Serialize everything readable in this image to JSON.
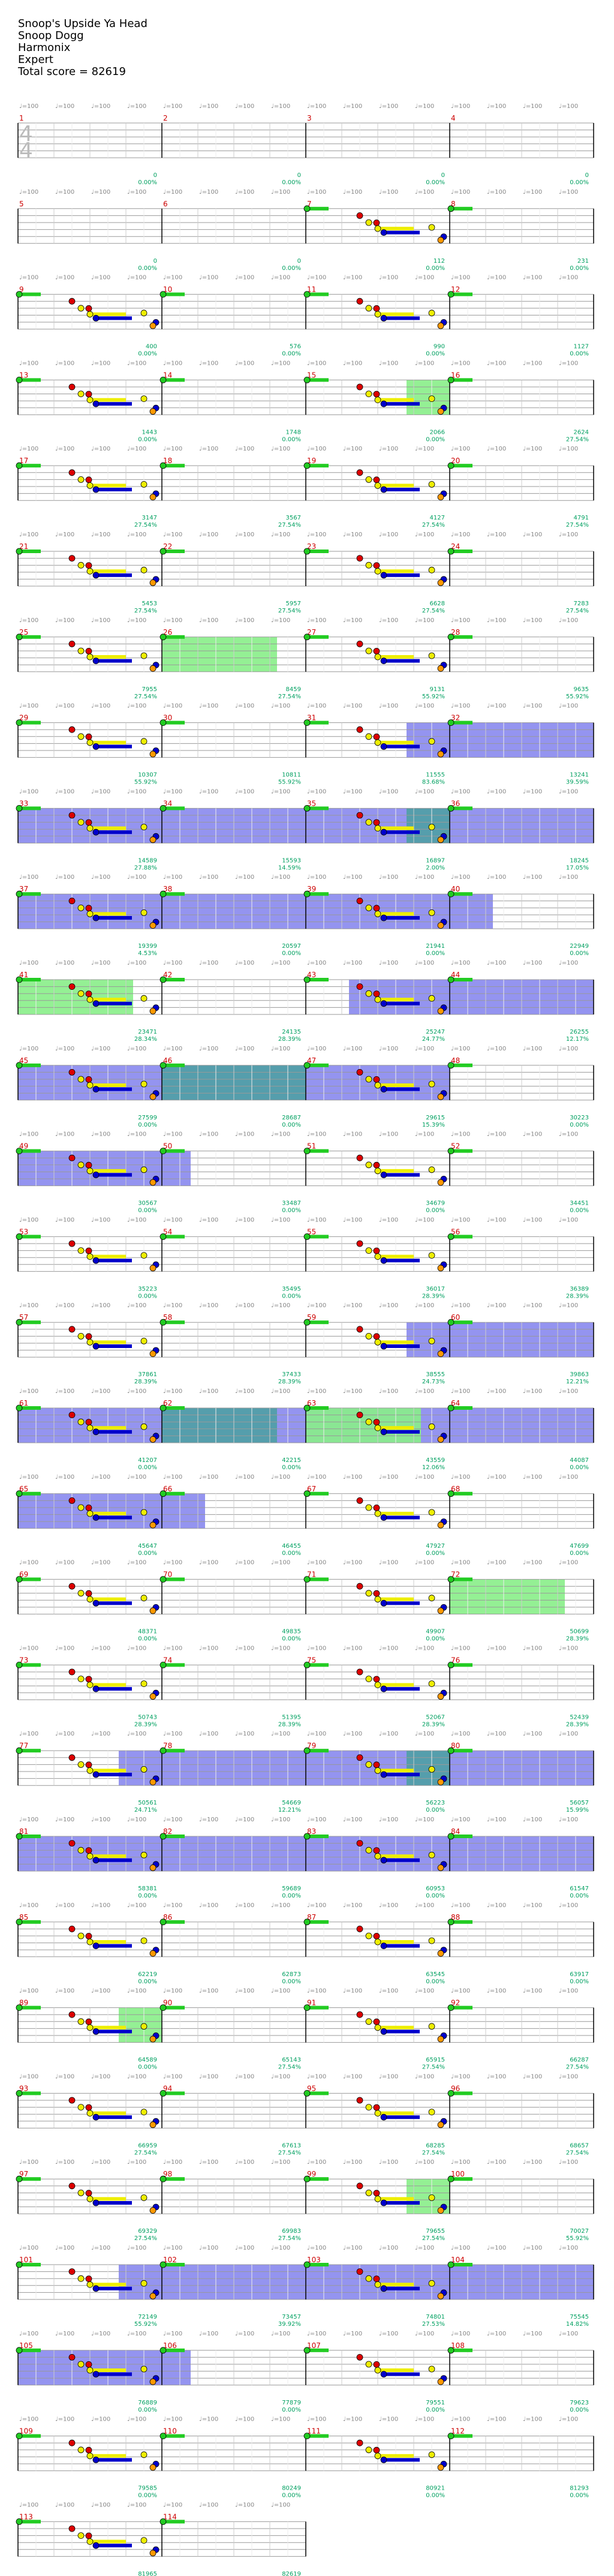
{
  "header": {
    "song": "Snoop's Upside Ya Head",
    "artist": "Snoop Dogg",
    "source": "Harmonix",
    "difficulty": "Expert",
    "total_score": "Total score = 82619"
  },
  "time_signature": {
    "top": "4",
    "bottom": "4"
  },
  "tempo_label": "♩=100",
  "colors": {
    "green": "#22cc22",
    "red": "#dd0000",
    "yellow": "#eeee00",
    "blue": "#0000cc",
    "orange": "#ff9900",
    "overdrive": "#88ee88",
    "solo": "#8888ee"
  },
  "rows": [
    {
      "measures": [
        "1",
        "2",
        "3",
        "4"
      ],
      "scores": [
        "0",
        "0",
        "0",
        "0"
      ],
      "pcts": [
        "0.00%",
        "0.00%",
        "0.00%",
        "0.00%"
      ]
    },
    {
      "measures": [
        "5",
        "6",
        "7",
        "8"
      ],
      "scores": [
        "0",
        "0",
        "112",
        "231"
      ],
      "pcts": [
        "0.00%",
        "0.00%",
        "0.00%",
        "0.00%"
      ]
    },
    {
      "measures": [
        "9",
        "10",
        "11",
        "12"
      ],
      "scores": [
        "400",
        "576",
        "990",
        "1127"
      ],
      "pcts": [
        "0.00%",
        "0.00%",
        "0.00%",
        "0.00%"
      ]
    },
    {
      "measures": [
        "13",
        "14",
        "15",
        "16"
      ],
      "scores": [
        "1443",
        "1748",
        "2066",
        "2624"
      ],
      "pcts": [
        "0.00%",
        "0.00%",
        "0.00%",
        "27.54%"
      ]
    },
    {
      "measures": [
        "17",
        "18",
        "19",
        "20"
      ],
      "scores": [
        "3147",
        "3567",
        "4127",
        "4791"
      ],
      "pcts": [
        "27.54%",
        "27.54%",
        "27.54%",
        "27.54%"
      ]
    },
    {
      "measures": [
        "21",
        "22",
        "23",
        "24"
      ],
      "scores": [
        "5453",
        "5957",
        "6628",
        "7283"
      ],
      "pcts": [
        "27.54%",
        "27.54%",
        "27.54%",
        "27.54%"
      ]
    },
    {
      "measures": [
        "25",
        "26",
        "27",
        "28"
      ],
      "scores": [
        "7955",
        "8459",
        "9131",
        "9635"
      ],
      "pcts": [
        "27.54%",
        "27.54%",
        "55.92%",
        "55.92%"
      ]
    },
    {
      "measures": [
        "29",
        "30",
        "31",
        "32"
      ],
      "scores": [
        "10307",
        "10811",
        "11555",
        "13241"
      ],
      "pcts": [
        "55.92%",
        "55.92%",
        "83.68%",
        "39.59%"
      ]
    },
    {
      "measures": [
        "33",
        "34",
        "35",
        "36"
      ],
      "scores": [
        "14589",
        "15593",
        "16897",
        "18245"
      ],
      "pcts": [
        "27.88%",
        "14.59%",
        "2.00%",
        "17.05%"
      ]
    },
    {
      "measures": [
        "37",
        "38",
        "39",
        "40"
      ],
      "scores": [
        "19399",
        "20597",
        "21941",
        "22949"
      ],
      "pcts": [
        "4.53%",
        "0.00%",
        "0.00%",
        "0.00%"
      ]
    },
    {
      "measures": [
        "41",
        "42",
        "43",
        "44"
      ],
      "scores": [
        "23471",
        "24135",
        "25247",
        "26255"
      ],
      "pcts": [
        "28.34%",
        "28.39%",
        "24.77%",
        "12.17%"
      ]
    },
    {
      "measures": [
        "45",
        "46",
        "47",
        "48"
      ],
      "scores": [
        "27599",
        "28687",
        "29615",
        "30223"
      ],
      "pcts": [
        "0.00%",
        "0.00%",
        "15.39%",
        "0.00%"
      ]
    },
    {
      "measures": [
        "49",
        "50",
        "51",
        "52"
      ],
      "scores": [
        "30567",
        "33487",
        "34679",
        "34451"
      ],
      "pcts": [
        "0.00%",
        "0.00%",
        "0.00%",
        "0.00%"
      ]
    },
    {
      "measures": [
        "53",
        "54",
        "55",
        "56"
      ],
      "scores": [
        "35223",
        "35495",
        "36017",
        "36389"
      ],
      "pcts": [
        "0.00%",
        "0.00%",
        "28.39%",
        "28.39%"
      ]
    },
    {
      "measures": [
        "57",
        "58",
        "59",
        "60"
      ],
      "scores": [
        "37861",
        "37433",
        "38555",
        "39863"
      ],
      "pcts": [
        "28.39%",
        "28.39%",
        "24.73%",
        "12.21%"
      ]
    },
    {
      "measures": [
        "61",
        "62",
        "63",
        "64"
      ],
      "scores": [
        "41207",
        "42215",
        "43559",
        "44087"
      ],
      "pcts": [
        "0.00%",
        "0.00%",
        "12.06%",
        "0.00%"
      ]
    },
    {
      "measures": [
        "65",
        "66",
        "67",
        "68"
      ],
      "scores": [
        "45647",
        "46455",
        "47927",
        "47699"
      ],
      "pcts": [
        "0.00%",
        "0.00%",
        "0.00%",
        "0.00%"
      ]
    },
    {
      "measures": [
        "69",
        "70",
        "71",
        "72"
      ],
      "scores": [
        "48371",
        "49835",
        "49907",
        "50699"
      ],
      "pcts": [
        "0.00%",
        "0.00%",
        "0.00%",
        "28.39%"
      ]
    },
    {
      "measures": [
        "73",
        "74",
        "75",
        "76"
      ],
      "scores": [
        "50743",
        "51395",
        "52067",
        "52439"
      ],
      "pcts": [
        "28.39%",
        "28.39%",
        "28.39%",
        "28.39%"
      ]
    },
    {
      "measures": [
        "77",
        "78",
        "79",
        "80"
      ],
      "scores": [
        "50561",
        "54669",
        "56223",
        "56057"
      ],
      "pcts": [
        "24.71%",
        "12.21%",
        "0.00%",
        "15.99%"
      ]
    },
    {
      "measures": [
        "81",
        "82",
        "83",
        "84"
      ],
      "scores": [
        "58381",
        "59689",
        "60953",
        "61547"
      ],
      "pcts": [
        "0.00%",
        "0.00%",
        "0.00%",
        "0.00%"
      ]
    },
    {
      "measures": [
        "85",
        "86",
        "87",
        "88"
      ],
      "scores": [
        "62219",
        "62873",
        "63545",
        "63917"
      ],
      "pcts": [
        "0.00%",
        "0.00%",
        "0.00%",
        "0.00%"
      ]
    },
    {
      "measures": [
        "89",
        "90",
        "91",
        "92"
      ],
      "scores": [
        "64589",
        "65143",
        "65915",
        "66287"
      ],
      "pcts": [
        "0.00%",
        "27.54%",
        "27.54%",
        "27.54%"
      ]
    },
    {
      "measures": [
        "93",
        "94",
        "95",
        "96"
      ],
      "scores": [
        "66959",
        "67613",
        "68285",
        "68657"
      ],
      "pcts": [
        "27.54%",
        "27.54%",
        "27.54%",
        "27.54%"
      ]
    },
    {
      "measures": [
        "97",
        "98",
        "99",
        "100"
      ],
      "scores": [
        "69329",
        "69983",
        "79655",
        "70027"
      ],
      "pcts": [
        "27.54%",
        "27.54%",
        "27.54%",
        "55.92%"
      ]
    },
    {
      "measures": [
        "101",
        "102",
        "103",
        "104"
      ],
      "scores": [
        "72149",
        "73457",
        "74801",
        "75545"
      ],
      "pcts": [
        "55.92%",
        "39.92%",
        "27.53%",
        "14.82%"
      ]
    },
    {
      "measures": [
        "105",
        "106",
        "107",
        "108"
      ],
      "scores": [
        "76889",
        "77879",
        "79551",
        "79623"
      ],
      "pcts": [
        "0.00%",
        "0.00%",
        "0.00%",
        "0.00%"
      ]
    },
    {
      "measures": [
        "109",
        "110",
        "111",
        "112"
      ],
      "scores": [
        "79585",
        "80249",
        "80921",
        "81293"
      ],
      "pcts": [
        "0.00%",
        "0.00%",
        "0.00%",
        "0.00%"
      ]
    },
    {
      "measures": [
        "113",
        "114"
      ],
      "scores": [
        "81965",
        "82619"
      ],
      "pcts": [
        "0.00%",
        "0.00%"
      ]
    }
  ]
}
